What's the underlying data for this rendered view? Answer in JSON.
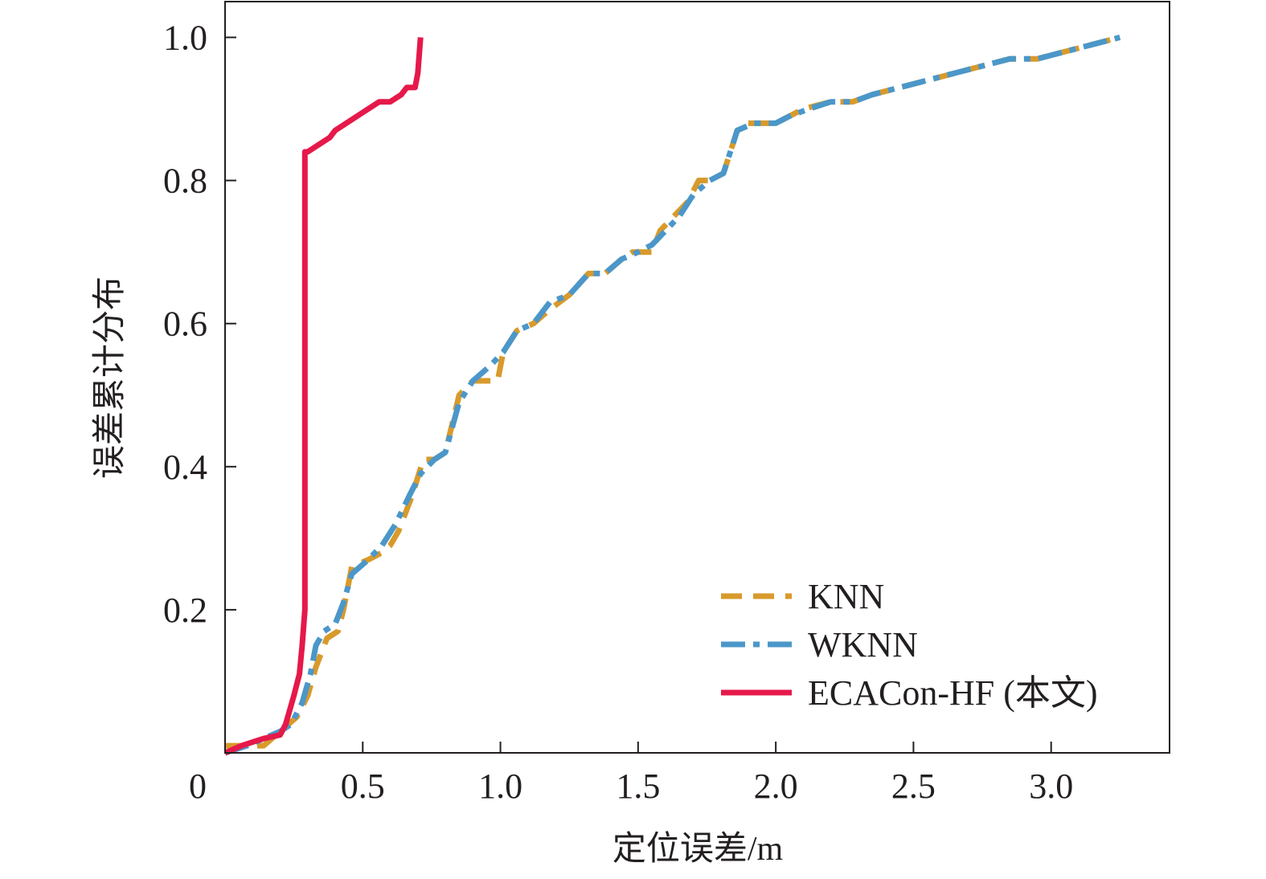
{
  "chart_data": {
    "type": "line",
    "title": "",
    "xlabel": "定位误差/m",
    "ylabel": "误差累计分布",
    "xlim": [
      0,
      3.43
    ],
    "ylim": [
      0,
      1.05
    ],
    "x_ticks": [
      0,
      0.5,
      1.0,
      1.5,
      2.0,
      2.5,
      3.0
    ],
    "x_tick_labels": [
      "0",
      "0.5",
      "1.0",
      "1.5",
      "2.0",
      "2.5",
      "3.0"
    ],
    "y_ticks": [
      0.2,
      0.4,
      0.6,
      0.8,
      1.0
    ],
    "y_tick_labels": [
      "0.2",
      "0.4",
      "0.6",
      "0.8",
      "1.0"
    ],
    "grid": false,
    "legend_position": "bottom-right",
    "series": [
      {
        "name": "KNN",
        "color": "#D89A2B",
        "style": "dashed",
        "points": [
          [
            0,
            0.01
          ],
          [
            0.08,
            0.01
          ],
          [
            0.14,
            0.01
          ],
          [
            0.2,
            0.03
          ],
          [
            0.26,
            0.05
          ],
          [
            0.3,
            0.08
          ],
          [
            0.33,
            0.12
          ],
          [
            0.37,
            0.16
          ],
          [
            0.41,
            0.17
          ],
          [
            0.43,
            0.2
          ],
          [
            0.46,
            0.26
          ],
          [
            0.52,
            0.27
          ],
          [
            0.57,
            0.28
          ],
          [
            0.6,
            0.29
          ],
          [
            0.63,
            0.31
          ],
          [
            0.68,
            0.36
          ],
          [
            0.72,
            0.41
          ],
          [
            0.76,
            0.41
          ],
          [
            0.8,
            0.42
          ],
          [
            0.85,
            0.5
          ],
          [
            0.9,
            0.52
          ],
          [
            0.93,
            0.52
          ],
          [
            0.99,
            0.52
          ],
          [
            1.01,
            0.56
          ],
          [
            1.06,
            0.59
          ],
          [
            1.12,
            0.6
          ],
          [
            1.18,
            0.62
          ],
          [
            1.25,
            0.64
          ],
          [
            1.32,
            0.67
          ],
          [
            1.38,
            0.67
          ],
          [
            1.44,
            0.69
          ],
          [
            1.48,
            0.7
          ],
          [
            1.55,
            0.7
          ],
          [
            1.58,
            0.73
          ],
          [
            1.63,
            0.75
          ],
          [
            1.68,
            0.77
          ],
          [
            1.72,
            0.8
          ],
          [
            1.76,
            0.8
          ],
          [
            1.81,
            0.81
          ],
          [
            1.86,
            0.87
          ],
          [
            1.9,
            0.88
          ],
          [
            2.0,
            0.88
          ],
          [
            2.05,
            0.89
          ],
          [
            2.1,
            0.9
          ],
          [
            2.2,
            0.91
          ],
          [
            2.28,
            0.91
          ],
          [
            2.35,
            0.92
          ],
          [
            2.45,
            0.93
          ],
          [
            2.55,
            0.94
          ],
          [
            2.65,
            0.95
          ],
          [
            2.75,
            0.96
          ],
          [
            2.85,
            0.97
          ],
          [
            2.95,
            0.97
          ],
          [
            3.05,
            0.98
          ],
          [
            3.15,
            0.99
          ],
          [
            3.25,
            1.0
          ]
        ]
      },
      {
        "name": "WKNN",
        "color": "#4B97C9",
        "style": "dashdot",
        "points": [
          [
            0,
            0.0
          ],
          [
            0.08,
            0.01
          ],
          [
            0.14,
            0.02
          ],
          [
            0.2,
            0.03
          ],
          [
            0.24,
            0.04
          ],
          [
            0.28,
            0.07
          ],
          [
            0.31,
            0.11
          ],
          [
            0.33,
            0.15
          ],
          [
            0.36,
            0.17
          ],
          [
            0.4,
            0.18
          ],
          [
            0.43,
            0.21
          ],
          [
            0.46,
            0.25
          ],
          [
            0.52,
            0.27
          ],
          [
            0.57,
            0.29
          ],
          [
            0.62,
            0.32
          ],
          [
            0.67,
            0.36
          ],
          [
            0.71,
            0.39
          ],
          [
            0.76,
            0.41
          ],
          [
            0.8,
            0.42
          ],
          [
            0.85,
            0.49
          ],
          [
            0.9,
            0.52
          ],
          [
            0.96,
            0.54
          ],
          [
            1.01,
            0.56
          ],
          [
            1.06,
            0.59
          ],
          [
            1.12,
            0.6
          ],
          [
            1.18,
            0.63
          ],
          [
            1.25,
            0.64
          ],
          [
            1.32,
            0.67
          ],
          [
            1.38,
            0.67
          ],
          [
            1.44,
            0.69
          ],
          [
            1.5,
            0.7
          ],
          [
            1.55,
            0.71
          ],
          [
            1.6,
            0.73
          ],
          [
            1.65,
            0.75
          ],
          [
            1.7,
            0.78
          ],
          [
            1.76,
            0.8
          ],
          [
            1.81,
            0.81
          ],
          [
            1.86,
            0.87
          ],
          [
            1.92,
            0.88
          ],
          [
            2.0,
            0.88
          ],
          [
            2.05,
            0.89
          ],
          [
            2.12,
            0.9
          ],
          [
            2.2,
            0.91
          ],
          [
            2.28,
            0.91
          ],
          [
            2.35,
            0.92
          ],
          [
            2.45,
            0.93
          ],
          [
            2.55,
            0.94
          ],
          [
            2.65,
            0.95
          ],
          [
            2.75,
            0.96
          ],
          [
            2.85,
            0.97
          ],
          [
            2.95,
            0.97
          ],
          [
            3.05,
            0.98
          ],
          [
            3.15,
            0.99
          ],
          [
            3.25,
            1.0
          ]
        ]
      },
      {
        "name": "ECACon-HF (本文)",
        "color": "#E5194A",
        "style": "solid",
        "points": [
          [
            0,
            0.0
          ],
          [
            0.06,
            0.01
          ],
          [
            0.1,
            0.015
          ],
          [
            0.14,
            0.02
          ],
          [
            0.2,
            0.025
          ],
          [
            0.22,
            0.04
          ],
          [
            0.25,
            0.08
          ],
          [
            0.27,
            0.11
          ],
          [
            0.28,
            0.15
          ],
          [
            0.29,
            0.2
          ],
          [
            0.29,
            0.5
          ],
          [
            0.29,
            0.84
          ],
          [
            0.3,
            0.84
          ],
          [
            0.34,
            0.85
          ],
          [
            0.38,
            0.86
          ],
          [
            0.4,
            0.87
          ],
          [
            0.44,
            0.88
          ],
          [
            0.48,
            0.89
          ],
          [
            0.52,
            0.9
          ],
          [
            0.56,
            0.91
          ],
          [
            0.6,
            0.91
          ],
          [
            0.64,
            0.92
          ],
          [
            0.66,
            0.93
          ],
          [
            0.69,
            0.93
          ],
          [
            0.7,
            0.95
          ],
          [
            0.71,
            1.0
          ]
        ]
      }
    ]
  }
}
